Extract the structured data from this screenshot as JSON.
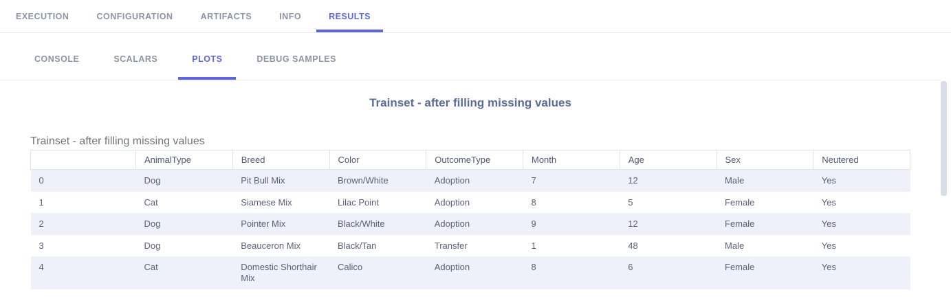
{
  "colors": {
    "accent": "#5a64ea",
    "row_alt_bg": "#eef1fa",
    "scrollbar_thumb": "#d9dde9",
    "plot_title_color": "#5d6b9b"
  },
  "top_tabs": [
    {
      "label": "EXECUTION",
      "active": false
    },
    {
      "label": "CONFIGURATION",
      "active": false
    },
    {
      "label": "ARTIFACTS",
      "active": false
    },
    {
      "label": "INFO",
      "active": false
    },
    {
      "label": "RESULTS",
      "active": true
    }
  ],
  "sub_tabs": [
    {
      "label": "CONSOLE",
      "active": false
    },
    {
      "label": "SCALARS",
      "active": false
    },
    {
      "label": "PLOTS",
      "active": true
    },
    {
      "label": "DEBUG SAMPLES",
      "active": false
    }
  ],
  "plot": {
    "title": "Trainset - after filling missing values"
  },
  "table": {
    "title": "Trainset - after filling missing values",
    "columns": [
      "",
      "AnimalType",
      "Breed",
      "Color",
      "OutcomeType",
      "Month",
      "Age",
      "Sex",
      "Neutered"
    ],
    "rows": [
      [
        "0",
        "Dog",
        "Pit Bull Mix",
        "Brown/White",
        "Adoption",
        "7",
        "12",
        "Male",
        "Yes"
      ],
      [
        "1",
        "Cat",
        "Siamese Mix",
        "Lilac Point",
        "Adoption",
        "8",
        "5",
        "Female",
        "Yes"
      ],
      [
        "2",
        "Dog",
        "Pointer Mix",
        "Black/White",
        "Adoption",
        "9",
        "12",
        "Female",
        "Yes"
      ],
      [
        "3",
        "Dog",
        "Beauceron Mix",
        "Black/Tan",
        "Transfer",
        "1",
        "48",
        "Male",
        "Yes"
      ],
      [
        "4",
        "Cat",
        "Domestic Shorthair Mix",
        "Calico",
        "Adoption",
        "8",
        "6",
        "Female",
        "Yes"
      ]
    ]
  }
}
